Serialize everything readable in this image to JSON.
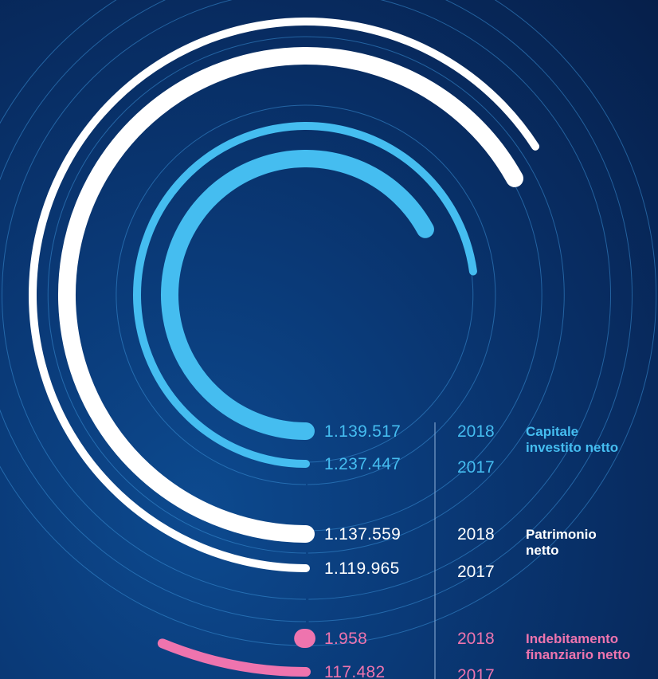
{
  "colors": {
    "capitale": "#45bdf0",
    "patrimonio": "#ffffff",
    "indebitamento": "#ee74ae",
    "thin_rings": "#3a8fd6",
    "divider": "#8fb0d8"
  },
  "chart_data": {
    "type": "radial-bar",
    "title": "",
    "ylabel": "",
    "xlabel": "",
    "groups": [
      {
        "name": "Capitale investito netto",
        "label_line1": "Capitale",
        "label_line2": "investito netto",
        "color": "#45bdf0",
        "rows": [
          {
            "year": "2018",
            "value": 1139517,
            "display": "1.139.517"
          },
          {
            "year": "2017",
            "value": 1237447,
            "display": "1.237.447"
          }
        ]
      },
      {
        "name": "Patrimonio netto",
        "label_line1": "Patrimonio",
        "label_line2": "netto",
        "color": "#ffffff",
        "rows": [
          {
            "year": "2018",
            "value": 1137559,
            "display": "1.137.559"
          },
          {
            "year": "2017",
            "value": 1119965,
            "display": "1.119.965"
          }
        ]
      },
      {
        "name": "Indebitamento finanziario netto",
        "label_line1": "Indebitamento",
        "label_line2": "finanziario netto",
        "color": "#ee74ae",
        "rows": [
          {
            "year": "2018",
            "value": 1958,
            "display": "1.958"
          },
          {
            "year": "2017",
            "value": 117482,
            "display": "117.482"
          }
        ]
      }
    ]
  }
}
